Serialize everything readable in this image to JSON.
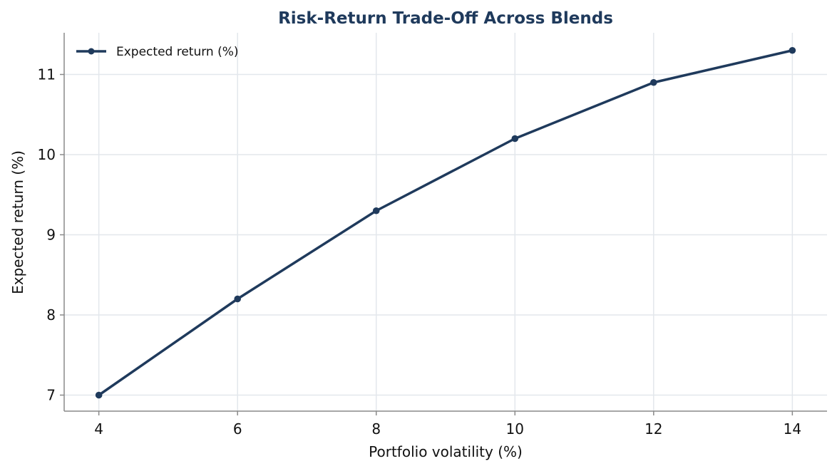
{
  "chart_data": {
    "type": "line",
    "title": "Risk-Return Trade-Off Across Blends",
    "xlabel": "Portfolio volatility (%)",
    "ylabel": "Expected return (%)",
    "x": [
      4,
      6,
      8,
      10,
      12,
      14
    ],
    "series": [
      {
        "name": "Expected return (%)",
        "values": [
          7.0,
          8.2,
          9.3,
          10.2,
          10.9,
          11.3
        ]
      }
    ],
    "xlim": [
      3.5,
      14.5
    ],
    "ylim": [
      6.8,
      11.52
    ],
    "xticks": [
      4,
      6,
      8,
      10,
      12,
      14
    ],
    "yticks": [
      7,
      8,
      9,
      10,
      11
    ],
    "grid": true,
    "legend_position": "top-left",
    "colors": {
      "line": "#1f3a5c",
      "title": "#1f3a5c",
      "grid": "#e3e7ec",
      "axis": "#8a8a8a"
    }
  }
}
